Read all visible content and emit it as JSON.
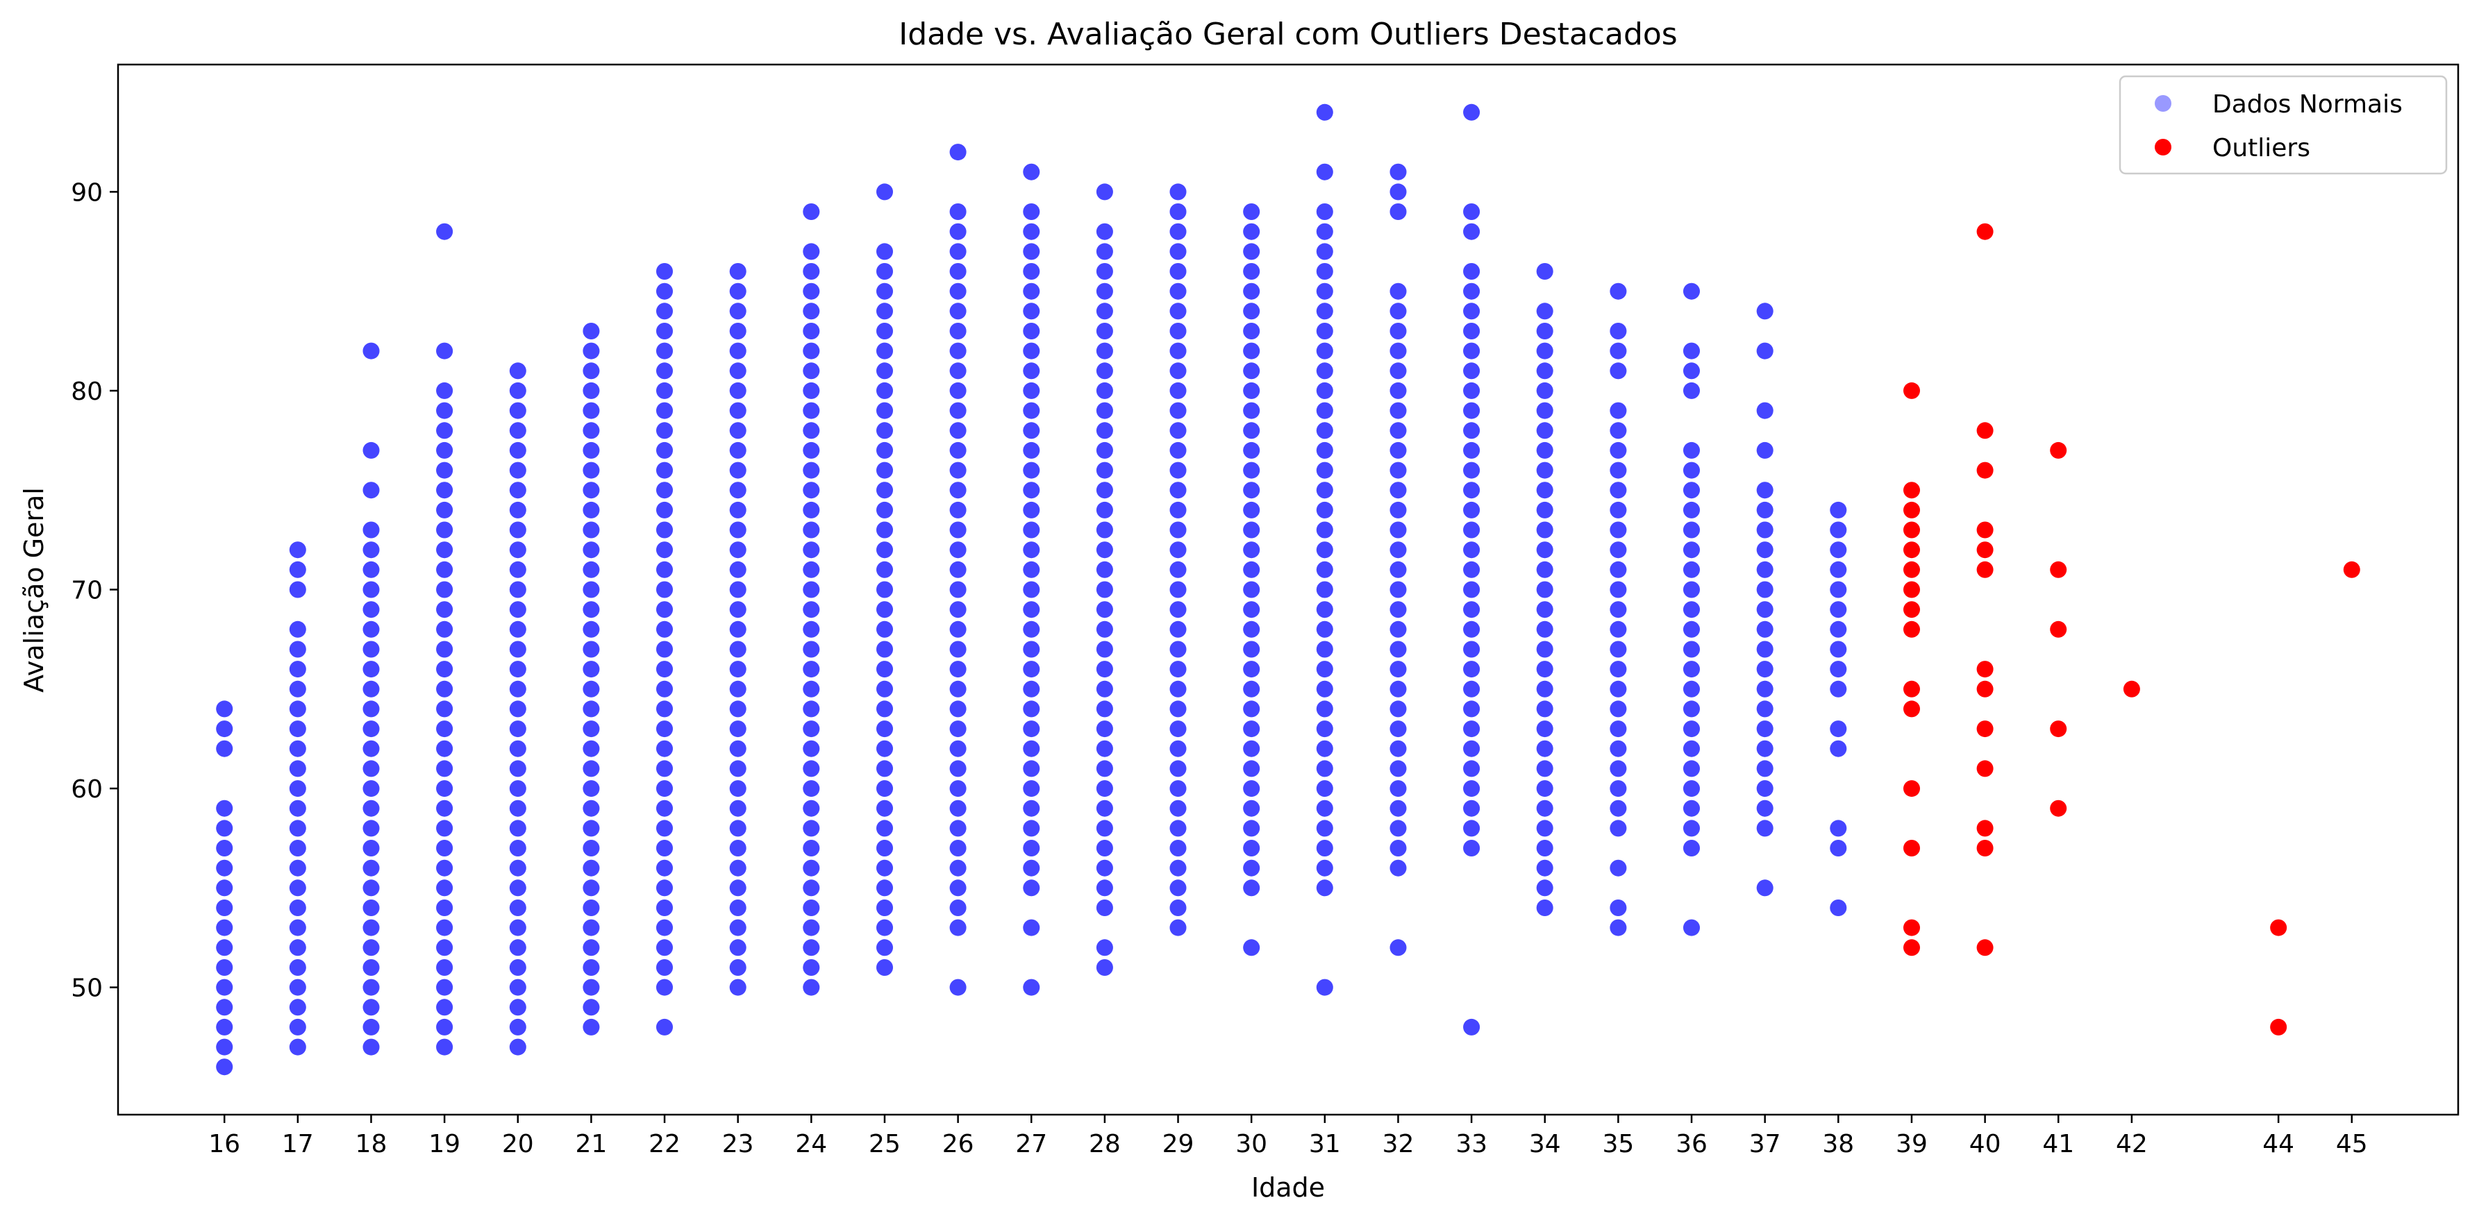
{
  "chart_data": {
    "type": "scatter",
    "title": "Idade vs. Avaliação Geral com Outliers Destacados",
    "xlabel": "Idade",
    "ylabel": "Avaliação Geral",
    "xlim": [
      14.55,
      46.45
    ],
    "ylim": [
      43.6,
      96.4
    ],
    "xticks": [
      16,
      17,
      18,
      19,
      20,
      21,
      22,
      23,
      24,
      25,
      26,
      27,
      28,
      29,
      30,
      31,
      32,
      33,
      34,
      35,
      36,
      37,
      38,
      39,
      40,
      41,
      42,
      44,
      45
    ],
    "yticks": [
      50,
      60,
      70,
      80,
      90
    ],
    "grid": false,
    "legend_position": "top-right",
    "colors": {
      "normal": "#0000ff",
      "outlier": "#ff0000"
    },
    "series": [
      {
        "name": "Dados Normais",
        "columns": [
          {
            "x": 16,
            "min": 46,
            "max": 64,
            "missing": [
              60,
              61
            ]
          },
          {
            "x": 17,
            "min": 47,
            "max": 72,
            "missing": [
              69,
              73,
              74,
              75,
              76
            ]
          },
          {
            "x": 18,
            "min": 47,
            "max": 82,
            "missing": [
              74,
              76,
              78,
              79,
              80,
              81
            ]
          },
          {
            "x": 19,
            "min": 47,
            "max": 88,
            "missing": [
              81,
              83,
              84,
              85,
              86,
              87
            ]
          },
          {
            "x": 20,
            "min": 47,
            "max": 81,
            "missing": []
          },
          {
            "x": 21,
            "min": 48,
            "max": 83,
            "missing": []
          },
          {
            "x": 22,
            "min": 48,
            "max": 86,
            "missing": [
              49
            ]
          },
          {
            "x": 23,
            "min": 50,
            "max": 86,
            "missing": []
          },
          {
            "x": 24,
            "min": 50,
            "max": 89,
            "missing": [
              88
            ]
          },
          {
            "x": 25,
            "min": 51,
            "max": 90,
            "missing": [
              88,
              89
            ]
          },
          {
            "x": 26,
            "min": 50,
            "max": 92,
            "missing": [
              51,
              52,
              90,
              91
            ]
          },
          {
            "x": 27,
            "min": 50,
            "max": 91,
            "missing": [
              51,
              52,
              54,
              90
            ]
          },
          {
            "x": 28,
            "min": 51,
            "max": 90,
            "missing": [
              53,
              89
            ]
          },
          {
            "x": 29,
            "min": 53,
            "max": 90,
            "missing": []
          },
          {
            "x": 30,
            "min": 52,
            "max": 89,
            "missing": [
              53,
              54
            ]
          },
          {
            "x": 31,
            "min": 50,
            "max": 94,
            "missing": [
              51,
              52,
              53,
              54,
              90,
              92,
              93
            ]
          },
          {
            "x": 32,
            "min": 52,
            "max": 91,
            "missing": [
              53,
              54,
              55,
              86,
              87,
              88
            ]
          },
          {
            "x": 33,
            "min": 48,
            "max": 94,
            "missing": [
              49,
              50,
              51,
              52,
              53,
              54,
              55,
              56,
              87,
              90,
              91,
              92,
              93
            ]
          },
          {
            "x": 34,
            "min": 54,
            "max": 86,
            "missing": [
              85
            ]
          },
          {
            "x": 35,
            "min": 53,
            "max": 85,
            "missing": [
              55,
              57,
              80,
              84
            ]
          },
          {
            "x": 36,
            "min": 53,
            "max": 85,
            "missing": [
              54,
              55,
              56,
              78,
              79,
              83,
              84
            ]
          },
          {
            "x": 37,
            "min": 55,
            "max": 84,
            "missing": [
              56,
              57,
              76,
              78,
              80,
              81,
              83
            ]
          },
          {
            "x": 38,
            "min": 54,
            "max": 74,
            "missing": [
              55,
              56,
              59,
              60,
              61,
              64
            ]
          }
        ]
      },
      {
        "name": "Outliers",
        "points": [
          [
            39,
            80
          ],
          [
            39,
            75
          ],
          [
            39,
            74
          ],
          [
            39,
            73
          ],
          [
            39,
            72
          ],
          [
            39,
            71
          ],
          [
            39,
            70
          ],
          [
            39,
            69
          ],
          [
            39,
            68
          ],
          [
            39,
            65
          ],
          [
            39,
            64
          ],
          [
            39,
            60
          ],
          [
            39,
            57
          ],
          [
            39,
            53
          ],
          [
            39,
            52
          ],
          [
            40,
            88
          ],
          [
            40,
            78
          ],
          [
            40,
            76
          ],
          [
            40,
            73
          ],
          [
            40,
            72
          ],
          [
            40,
            71
          ],
          [
            40,
            66
          ],
          [
            40,
            65
          ],
          [
            40,
            63
          ],
          [
            40,
            61
          ],
          [
            40,
            58
          ],
          [
            40,
            57
          ],
          [
            40,
            52
          ],
          [
            41,
            77
          ],
          [
            41,
            71
          ],
          [
            41,
            68
          ],
          [
            41,
            63
          ],
          [
            41,
            59
          ],
          [
            42,
            65
          ],
          [
            44,
            53
          ],
          [
            44,
            48
          ],
          [
            45,
            71
          ]
        ]
      }
    ]
  }
}
